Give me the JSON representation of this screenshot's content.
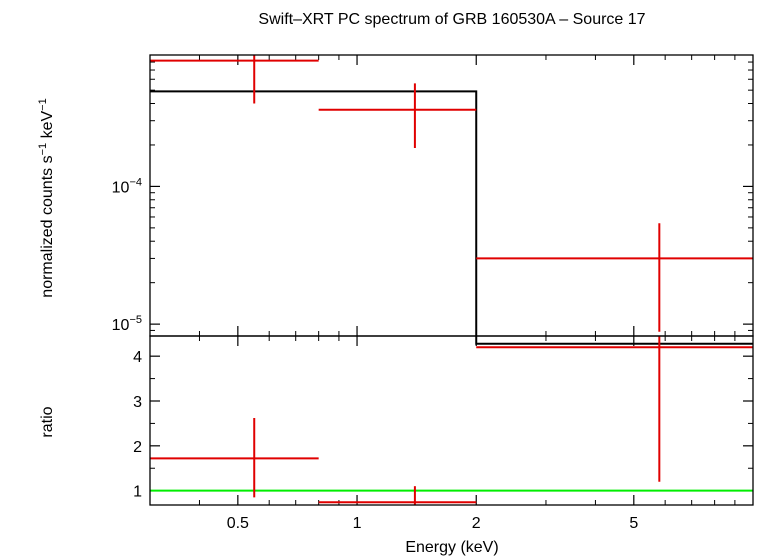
{
  "chart_data": [
    {
      "type": "step+errorbar",
      "title": "Swift–XRT PC spectrum of GRB 160530A – Source 17",
      "ylabel_main": "normalized counts s",
      "ylabel_sup1": "−1",
      "ylabel_mid": " keV",
      "ylabel_sup2": "−1",
      "x_scale": "log",
      "y_scale": "log",
      "xlim": [
        0.3,
        10
      ],
      "ylim": [
        8.2e-06,
        0.0009
      ],
      "ytick_labels": [
        {
          "value": 0.0001,
          "base": "10",
          "exp": "−4"
        },
        {
          "value": 1e-05,
          "base": "10",
          "exp": "−5"
        }
      ],
      "model": {
        "color": "#000000",
        "bins": [
          {
            "x0": 0.3,
            "x1": 2.0,
            "y": 0.00049
          },
          {
            "x0": 2.0,
            "x1": 10,
            "y": 7.2e-06
          }
        ]
      },
      "data": {
        "color": "#e00000",
        "points": [
          {
            "x": 0.55,
            "xlo": 0.3,
            "xhi": 0.8,
            "y": 0.00082,
            "ylo": 0.0004,
            "yhi": 0.0009
          },
          {
            "x": 1.4,
            "xlo": 0.8,
            "xhi": 2.0,
            "y": 0.00036,
            "ylo": 0.00019,
            "yhi": 0.00056
          },
          {
            "x": 5.8,
            "xlo": 2.0,
            "xhi": 10,
            "y": 3e-05,
            "ylo": 8.8e-06,
            "yhi": 5.4e-05
          }
        ]
      }
    },
    {
      "type": "errorbar",
      "ylabel": "ratio",
      "xlabel": "Energy (keV)",
      "x_scale": "log",
      "xlim": [
        0.3,
        10
      ],
      "ylim": [
        0.68,
        4.45
      ],
      "yticks": [
        1,
        2,
        3,
        4
      ],
      "xticks": [
        0.5,
        1,
        2,
        5
      ],
      "xtick_labels": [
        "0.5",
        "1",
        "2",
        "5"
      ],
      "reference_line": {
        "y": 1,
        "color": "#00ee00"
      },
      "data": {
        "color": "#e00000",
        "points": [
          {
            "x": 0.55,
            "xlo": 0.3,
            "xhi": 0.8,
            "y": 1.72,
            "ylo": 0.85,
            "yhi": 2.62
          },
          {
            "x": 1.4,
            "xlo": 0.8,
            "xhi": 2.0,
            "y": 0.74,
            "ylo": 0.68,
            "yhi": 1.1
          },
          {
            "x": 5.8,
            "xlo": 2.0,
            "xhi": 10,
            "y": 4.2,
            "ylo": 1.2,
            "yhi": 4.45
          }
        ]
      }
    }
  ]
}
